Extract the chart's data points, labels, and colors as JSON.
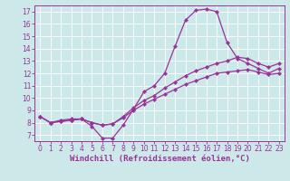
{
  "xlabel": "Windchill (Refroidissement éolien,°C)",
  "bg_color": "#cde8e8",
  "grid_color": "#ffffff",
  "line_color": "#993399",
  "xlim": [
    -0.5,
    23.5
  ],
  "ylim": [
    6.5,
    17.5
  ],
  "xticks": [
    0,
    1,
    2,
    3,
    4,
    5,
    6,
    7,
    8,
    9,
    10,
    11,
    12,
    13,
    14,
    15,
    16,
    17,
    18,
    19,
    20,
    21,
    22,
    23
  ],
  "yticks": [
    7,
    8,
    9,
    10,
    11,
    12,
    13,
    14,
    15,
    16,
    17
  ],
  "series1_x": [
    0,
    1,
    2,
    3,
    4,
    5,
    6,
    7,
    8,
    9,
    10,
    11,
    12,
    13,
    14,
    15,
    16,
    17,
    18,
    19,
    20,
    21,
    22,
    23
  ],
  "series1_y": [
    8.5,
    8.0,
    8.2,
    8.3,
    8.3,
    7.7,
    6.75,
    6.75,
    7.8,
    9.1,
    10.5,
    11.0,
    12.0,
    14.2,
    16.3,
    17.1,
    17.2,
    17.0,
    14.5,
    13.2,
    12.8,
    12.4,
    12.0,
    12.4
  ],
  "series2_x": [
    0,
    1,
    2,
    3,
    4,
    5,
    6,
    7,
    8,
    9,
    10,
    11,
    12,
    13,
    14,
    15,
    16,
    17,
    18,
    19,
    20,
    21,
    22,
    23
  ],
  "series2_y": [
    8.5,
    8.0,
    8.1,
    8.2,
    8.3,
    8.0,
    7.8,
    7.9,
    8.5,
    9.2,
    9.8,
    10.2,
    10.8,
    11.3,
    11.8,
    12.2,
    12.5,
    12.8,
    13.0,
    13.3,
    13.2,
    12.8,
    12.5,
    12.8
  ],
  "series3_x": [
    0,
    1,
    2,
    3,
    4,
    5,
    6,
    7,
    8,
    9,
    10,
    11,
    12,
    13,
    14,
    15,
    16,
    17,
    18,
    19,
    20,
    21,
    22,
    23
  ],
  "series3_y": [
    8.5,
    8.0,
    8.1,
    8.2,
    8.3,
    8.0,
    7.8,
    7.9,
    8.4,
    9.0,
    9.5,
    9.9,
    10.3,
    10.7,
    11.1,
    11.4,
    11.7,
    12.0,
    12.1,
    12.2,
    12.3,
    12.1,
    11.9,
    12.0
  ],
  "marker": "D",
  "markersize": 2.2,
  "linewidth": 0.9,
  "xlabel_fontsize": 6.5,
  "tick_fontsize": 5.5
}
